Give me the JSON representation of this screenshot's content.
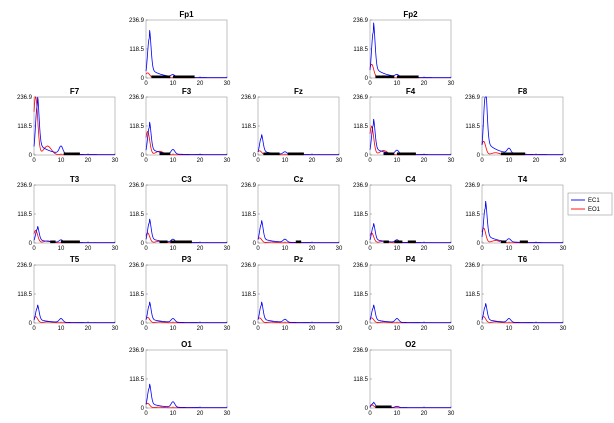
{
  "chart_data": {
    "type": "line",
    "x_range": [
      0,
      30
    ],
    "ylim": [
      0,
      236.9
    ],
    "x_ticks": [
      "0",
      "10",
      "20",
      "30"
    ],
    "y_ticks": [
      "0",
      "118.5",
      "236.9"
    ],
    "grid": false,
    "legend": {
      "placement": "right",
      "entries": [
        "EC1",
        "EO1"
      ]
    },
    "series_colors": {
      "EC1": "#0000ff",
      "EO1": "#ff0000"
    },
    "panels": [
      {
        "name": "Fp1",
        "ec_peak": 160,
        "eo_peak": 20,
        "alpha": 8,
        "bars": [
          [
            2,
            9
          ],
          [
            10,
            18
          ]
        ]
      },
      {
        "name": "Fp2",
        "ec_peak": 185,
        "eo_peak": 55,
        "alpha": 8,
        "bars": [
          [
            2,
            9
          ],
          [
            10,
            18
          ]
        ]
      },
      {
        "name": "F7",
        "ec_peak": 200,
        "eo_peak": 236.9,
        "alpha": 30,
        "bars": [
          [
            11,
            17
          ]
        ]
      },
      {
        "name": "F3",
        "ec_peak": 110,
        "eo_peak": 95,
        "alpha": 18,
        "bars": [
          [
            5,
            9
          ]
        ]
      },
      {
        "name": "Fz",
        "ec_peak": 68,
        "eo_peak": 16,
        "alpha": 10,
        "bars": [
          [
            2,
            8
          ],
          [
            11,
            17
          ]
        ]
      },
      {
        "name": "F4",
        "ec_peak": 120,
        "eo_peak": 115,
        "alpha": 15,
        "bars": [
          [
            5,
            9
          ],
          [
            10,
            17
          ]
        ]
      },
      {
        "name": "F8",
        "ec_peak": 236.9,
        "eo_peak": 55,
        "alpha": 20,
        "bars": [
          [
            7,
            16
          ]
        ]
      },
      {
        "name": "T3",
        "ec_peak": 55,
        "eo_peak": 50,
        "alpha": 10,
        "bars": [
          [
            6,
            8
          ],
          [
            10,
            17
          ]
        ]
      },
      {
        "name": "C3",
        "ec_peak": 80,
        "eo_peak": 40,
        "alpha": 12,
        "bars": [
          [
            5,
            8
          ],
          [
            9,
            17
          ]
        ]
      },
      {
        "name": "Cz",
        "ec_peak": 75,
        "eo_peak": 20,
        "alpha": 12,
        "bars": [
          [
            14,
            16
          ]
        ]
      },
      {
        "name": "C4",
        "ec_peak": 65,
        "eo_peak": 40,
        "alpha": 10,
        "bars": [
          [
            5,
            7
          ],
          [
            9,
            12
          ],
          [
            14,
            17
          ]
        ]
      },
      {
        "name": "T4",
        "ec_peak": 140,
        "eo_peak": 60,
        "alpha": 12,
        "bars": [
          [
            7,
            9
          ],
          [
            14,
            17
          ]
        ]
      },
      {
        "name": "T5",
        "ec_peak": 60,
        "eo_peak": 25,
        "alpha": 15,
        "bars": []
      },
      {
        "name": "P3",
        "ec_peak": 70,
        "eo_peak": 22,
        "alpha": 15,
        "bars": []
      },
      {
        "name": "Pz",
        "ec_peak": 70,
        "eo_peak": 20,
        "alpha": 12,
        "bars": []
      },
      {
        "name": "P4",
        "ec_peak": 60,
        "eo_peak": 20,
        "alpha": 15,
        "bars": []
      },
      {
        "name": "T6",
        "ec_peak": 65,
        "eo_peak": 25,
        "alpha": 15,
        "bars": []
      },
      {
        "name": "O1",
        "ec_peak": 80,
        "eo_peak": 18,
        "alpha": 22,
        "bars": []
      },
      {
        "name": "O2",
        "ec_peak": 18,
        "eo_peak": 12,
        "alpha": 5,
        "bars": [
          [
            2,
            8
          ]
        ]
      }
    ]
  }
}
